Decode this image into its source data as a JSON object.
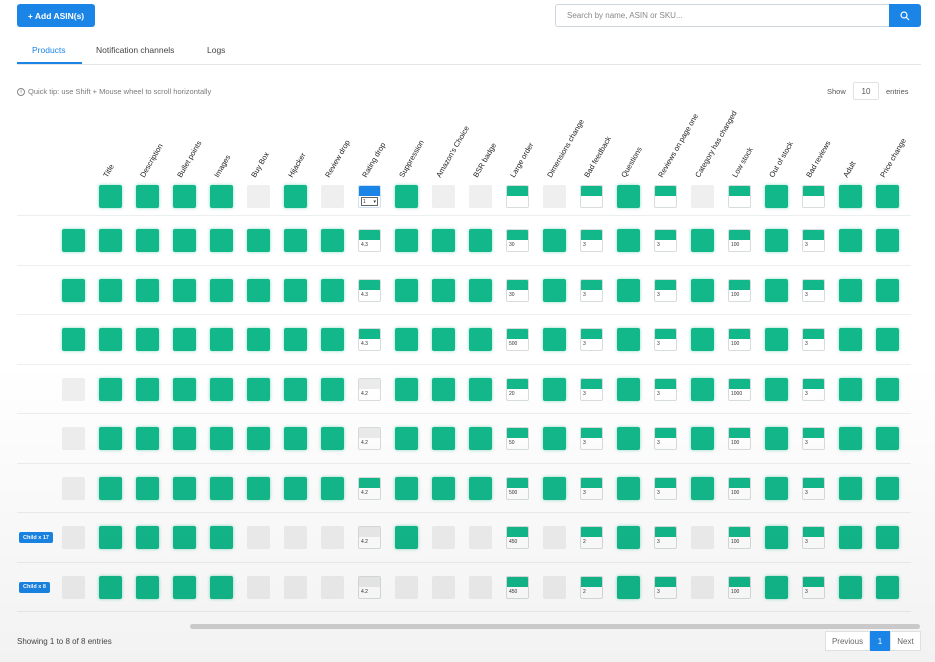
{
  "toolbar": {
    "add_button": "+ Add ASIN(s)",
    "search_placeholder": "Search by name, ASIN or SKU...",
    "search_icon": "search-icon"
  },
  "tabs": [
    {
      "label": "Products",
      "active": true
    },
    {
      "label": "Notification channels",
      "active": false
    },
    {
      "label": "Logs",
      "active": false
    }
  ],
  "tip": "Quick tip: use Shift + Mouse wheel to scroll horizontally",
  "entries": {
    "show_label": "Show",
    "value": "10",
    "entries_label": "entries"
  },
  "columns": [
    "Title",
    "Description",
    "Bullet points",
    "Images",
    "Buy Box",
    "Hijacker",
    "Review drop",
    "Rating drop",
    "Suppression",
    "Amazon's Choice",
    "BSR badge",
    "Large order",
    "Dimensions change",
    "Bad feedback",
    "Questions",
    "Reviews on page one",
    "Category has changed",
    "Low stock",
    "Out of stock",
    "Bad reviews",
    "Adult",
    "Price change"
  ],
  "header_row": {
    "cells": [
      "g",
      "g",
      "g",
      "g",
      "x",
      "g",
      "x",
      "sel",
      "g",
      "x",
      "x",
      "e",
      "x",
      "e",
      "g",
      "e",
      "x",
      "e",
      "g",
      "e",
      "g",
      "g"
    ],
    "rating_select_value": "1"
  },
  "rows": [
    {
      "first": "g",
      "badge": "",
      "cells": [
        "g",
        "g",
        "g",
        "g",
        "g",
        "g",
        "g",
        "s:4.3",
        "g",
        "g",
        "g",
        "s:30",
        "g",
        "s:3",
        "g",
        "s:3",
        "g",
        "s:100",
        "g",
        "s:3",
        "g",
        "g"
      ]
    },
    {
      "first": "g",
      "badge": "",
      "cells": [
        "g",
        "g",
        "g",
        "g",
        "g",
        "g",
        "g",
        "s:4.3",
        "g",
        "g",
        "g",
        "s:30",
        "g",
        "s:3",
        "g",
        "s:3",
        "g",
        "s:100",
        "g",
        "s:3",
        "g",
        "g"
      ]
    },
    {
      "first": "g",
      "badge": "",
      "cells": [
        "g",
        "g",
        "g",
        "g",
        "g",
        "g",
        "g",
        "s:4.3",
        "g",
        "g",
        "g",
        "s:500",
        "g",
        "s:3",
        "g",
        "s:3",
        "g",
        "s:100",
        "g",
        "s:3",
        "g",
        "g"
      ]
    },
    {
      "first": "x",
      "badge": "",
      "cells": [
        "g",
        "g",
        "g",
        "g",
        "g",
        "g",
        "g",
        "t:4.2",
        "g",
        "g",
        "g",
        "s:20",
        "g",
        "s:3",
        "g",
        "s:3",
        "g",
        "s:1000",
        "g",
        "s:3",
        "g",
        "g"
      ]
    },
    {
      "first": "x",
      "badge": "",
      "cells": [
        "g",
        "g",
        "g",
        "g",
        "g",
        "g",
        "g",
        "t:4.2",
        "g",
        "g",
        "g",
        "s:50",
        "g",
        "s:3",
        "g",
        "s:3",
        "g",
        "s:100",
        "g",
        "s:3",
        "g",
        "g"
      ]
    },
    {
      "first": "x",
      "badge": "",
      "cells": [
        "g",
        "g",
        "g",
        "g",
        "g",
        "g",
        "g",
        "s:4.2",
        "g",
        "g",
        "g",
        "s:500",
        "g",
        "s:3",
        "g",
        "s:3",
        "g",
        "s:100",
        "g",
        "s:3",
        "g",
        "g"
      ]
    },
    {
      "first": "x",
      "badge": "Child x 17",
      "cells": [
        "g",
        "g",
        "g",
        "g",
        "x",
        "x",
        "x",
        "t:4.2",
        "g",
        "x",
        "x",
        "s:450",
        "x",
        "s:2",
        "g",
        "s:3",
        "x",
        "s:100",
        "g",
        "s:3",
        "g",
        "g"
      ]
    },
    {
      "first": "x",
      "badge": "Child x 8",
      "cells": [
        "g",
        "g",
        "g",
        "g",
        "x",
        "x",
        "x",
        "t:4.2",
        "x",
        "x",
        "x",
        "s:450",
        "x",
        "s:2",
        "g",
        "s:3",
        "x",
        "s:100",
        "g",
        "s:3",
        "g",
        "g"
      ]
    }
  ],
  "footer": {
    "showing": "Showing 1 to 8 of 8 entries",
    "previous": "Previous",
    "page": "1",
    "next": "Next"
  },
  "colors": {
    "accent": "#1a85e6",
    "green": "#13b88a",
    "gray": "#efefef"
  }
}
